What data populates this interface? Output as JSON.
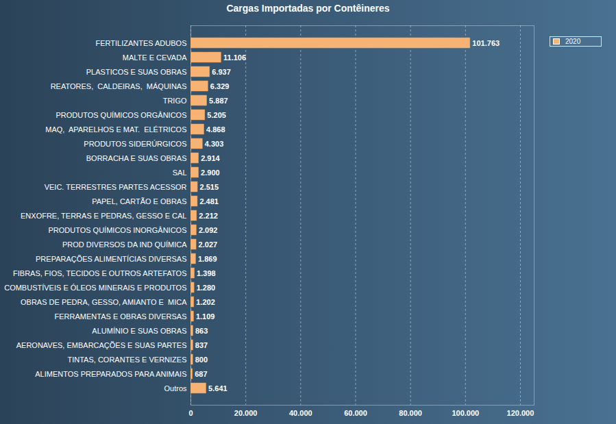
{
  "chart_data": {
    "type": "bar",
    "title": "Cargas Importadas por Contêineres",
    "orientation": "horizontal",
    "categories": [
      "FERTILIZANTES ADUBOS",
      "MALTE E CEVADA",
      "PLASTICOS E SUAS OBRAS",
      "REATORES,  CALDEIRAS,  MÁQUINAS",
      "TRIGO",
      "PRODUTOS QUÍMICOS ORGÂNICOS",
      "MAQ,  APARELHOS E MAT.  ELÉTRICOS",
      "PRODUTOS SIDERÚRGICOS",
      "BORRACHA E SUAS OBRAS",
      "SAL",
      "VEIC. TERRESTRES PARTES ACESSOR",
      "PAPEL, CARTÃO E OBRAS",
      "ENXOFRE, TERRAS E PEDRAS, GESSO E CAL",
      "PRODUTOS QUÍMICOS INORGÂNICOS",
      "PROD DIVERSOS DA IND QUÍMICA",
      "PREPARAÇÕES ALIMENTÍCIAS DIVERSAS",
      "FIBRAS, FIOS, TECIDOS E OUTROS ARTEFATOS",
      "COMBUSTÍVEIS E ÓLEOS MINERAIS E PRODUTOS",
      "OBRAS DE PEDRA, GESSO, AMIANTO E  MICA",
      "FERRAMENTAS E OBRAS DIVERSAS",
      "ALUMÍNIO E SUAS OBRAS",
      "AERONAVES, EMBARCAÇÕES E SUAS PARTES",
      "TINTAS, CORANTES E VERNIZES",
      "ALIMENTOS PREPARADOS PARA ANIMAIS",
      "Outros"
    ],
    "series": [
      {
        "name": "2020",
        "color": "#f6b374",
        "values": [
          101763,
          11106,
          6937,
          6329,
          5887,
          5205,
          4868,
          4303,
          2914,
          2900,
          2515,
          2481,
          2212,
          2092,
          2027,
          1869,
          1398,
          1280,
          1202,
          1109,
          863,
          837,
          800,
          687,
          5641
        ],
        "value_labels": [
          "101.763",
          "11.106",
          "6.937",
          "6.329",
          "5.887",
          "5.205",
          "4.868",
          "4.303",
          "2.914",
          "2.900",
          "2.515",
          "2.481",
          "2.212",
          "2.092",
          "2.027",
          "1.869",
          "1.398",
          "1.280",
          "1.202",
          "1.109",
          "863",
          "837",
          "800",
          "687",
          "5.641"
        ]
      }
    ],
    "xlim": [
      0,
      125000
    ],
    "xticks": [
      0,
      {
        "value": 20000,
        "label": "20.000"
      },
      {
        "value": 40000,
        "label": "40.000"
      },
      {
        "value": 60000,
        "label": "60.000"
      },
      {
        "value": 80000,
        "label": "80.000"
      },
      {
        "value": 100000,
        "label": "100.000"
      },
      {
        "value": 120000,
        "label": "120.000"
      }
    ],
    "grid": true,
    "legend": "top-right",
    "data_labels": true
  }
}
